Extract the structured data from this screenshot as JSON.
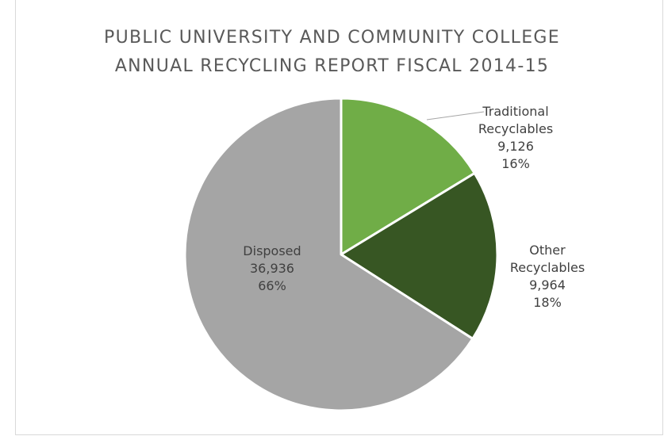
{
  "chart_data": {
    "type": "pie",
    "title_lines": [
      "PUBLIC UNIVERSITY AND COMMUNITY COLLEGE",
      "ANNUAL RECYCLING REPORT FISCAL 2014-15"
    ],
    "slices": [
      {
        "name_lines": [
          "Traditional",
          "Recyclables"
        ],
        "value": 9126,
        "value_label": "9,126",
        "percent_label": "16%",
        "color": "#70ad47"
      },
      {
        "name_lines": [
          "Other",
          "Recyclables"
        ],
        "value": 9964,
        "value_label": "9,964",
        "percent_label": "18%",
        "color": "#375623"
      },
      {
        "name_lines": [
          "Disposed"
        ],
        "value": 36936,
        "value_label": "36,936",
        "percent_label": "66%",
        "color": "#a5a5a5"
      }
    ],
    "start_angle": "12 o'clock",
    "direction": "clockwise",
    "legend": "none",
    "label_style": "category, value, percentage"
  }
}
